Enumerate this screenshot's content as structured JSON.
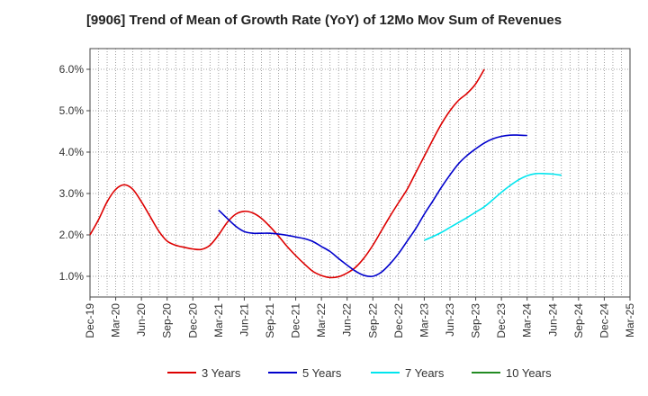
{
  "chart_data": {
    "type": "line",
    "title": "[9906]  Trend of Mean of Growth Rate (YoY) of 12Mo Mov Sum of Revenues",
    "xlabel": "",
    "ylabel": "",
    "ylim": [
      0.5,
      6.5
    ],
    "yticks": [
      1.0,
      2.0,
      3.0,
      4.0,
      5.0,
      6.0
    ],
    "ytick_labels": [
      "1.0%",
      "2.0%",
      "3.0%",
      "4.0%",
      "5.0%",
      "6.0%"
    ],
    "xtick_labels": [
      "Dec-19",
      "Mar-20",
      "Jun-20",
      "Sep-20",
      "Dec-20",
      "Mar-21",
      "Jun-21",
      "Sep-21",
      "Dec-21",
      "Mar-22",
      "Jun-22",
      "Sep-22",
      "Dec-22",
      "Mar-23",
      "Jun-23",
      "Sep-23",
      "Dec-23",
      "Mar-24",
      "Jun-24",
      "Sep-24",
      "Dec-24",
      "Mar-25"
    ],
    "x_start": "Dec-19",
    "x_step_months": 3,
    "grid": true,
    "legend_position": "bottom",
    "series": [
      {
        "name": "3 Years",
        "color": "#dd0000",
        "start_month_index": 0,
        "values": [
          2.0,
          2.37,
          2.8,
          3.1,
          3.21,
          3.1,
          2.8,
          2.45,
          2.1,
          1.85,
          1.75,
          1.7,
          1.66,
          1.65,
          1.75,
          2.0,
          2.3,
          2.5,
          2.57,
          2.53,
          2.4,
          2.2,
          1.97,
          1.72,
          1.5,
          1.3,
          1.12,
          1.02,
          0.97,
          0.99,
          1.08,
          1.22,
          1.45,
          1.75,
          2.1,
          2.45,
          2.78,
          3.1,
          3.5,
          3.9,
          4.3,
          4.68,
          5.0,
          5.25,
          5.42,
          5.65,
          6.0
        ]
      },
      {
        "name": "5 Years",
        "color": "#0000cc",
        "start_month_index": 15,
        "values": [
          2.6,
          2.4,
          2.21,
          2.08,
          2.04,
          2.04,
          2.04,
          2.02,
          1.99,
          1.95,
          1.91,
          1.84,
          1.72,
          1.6,
          1.43,
          1.27,
          1.12,
          1.02,
          1.0,
          1.1,
          1.3,
          1.55,
          1.85,
          2.15,
          2.5,
          2.82,
          3.15,
          3.45,
          3.72,
          3.92,
          4.08,
          4.22,
          4.32,
          4.38,
          4.41,
          4.41,
          4.4
        ]
      },
      {
        "name": "7 Years",
        "color": "#00e5ee",
        "start_month_index": 39,
        "values": [
          1.87,
          1.96,
          2.06,
          2.18,
          2.3,
          2.42,
          2.55,
          2.68,
          2.85,
          3.03,
          3.19,
          3.33,
          3.43,
          3.48,
          3.48,
          3.47,
          3.44
        ]
      },
      {
        "name": "10 Years",
        "color": "#228b22",
        "start_month_index": 0,
        "values": []
      }
    ]
  }
}
